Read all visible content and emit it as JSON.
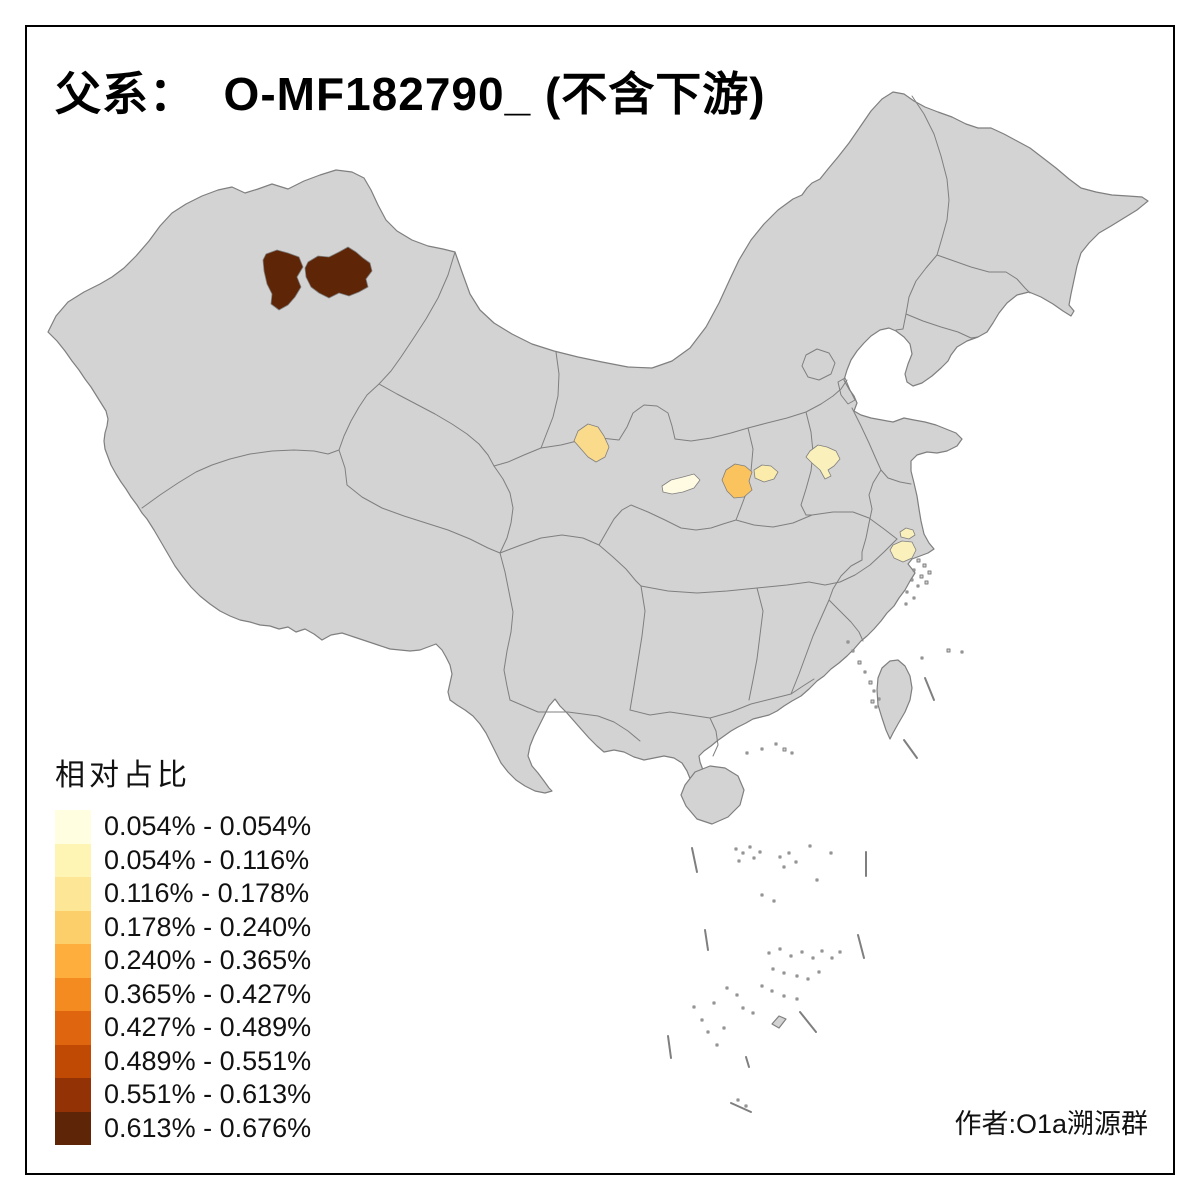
{
  "title": "父系：  O-MF182790_ (不含下游)",
  "attribution": "作者:O1a溯源群",
  "legend": {
    "title": "相对占比",
    "classes": [
      {
        "label": "0.054% - 0.054%",
        "color": "#FFFEE0"
      },
      {
        "label": "0.054% - 0.116%",
        "color": "#FEF4B4"
      },
      {
        "label": "0.116% - 0.178%",
        "color": "#FDE696"
      },
      {
        "label": "0.178% - 0.240%",
        "color": "#FDCF6B"
      },
      {
        "label": "0.240% - 0.365%",
        "color": "#FDAE3D"
      },
      {
        "label": "0.365% - 0.427%",
        "color": "#F38B21"
      },
      {
        "label": "0.427% - 0.489%",
        "color": "#DF650E"
      },
      {
        "label": "0.489% - 0.551%",
        "color": "#C04A04"
      },
      {
        "label": "0.551% - 0.613%",
        "color": "#933204"
      },
      {
        "label": "0.613% - 0.676%",
        "color": "#5F2507"
      }
    ]
  },
  "map": {
    "background": "#FFFFFF",
    "land_fill": "#D3D3D3",
    "border_color": "#7F7F7F",
    "frame_color": "#000000",
    "regions": [
      {
        "id": "xinjiang-northwest",
        "color": "#5E2507",
        "legend_class": "0.613% - 0.676%"
      },
      {
        "id": "xinjiang-north",
        "color": "#5E2507",
        "legend_class": "0.613% - 0.676%"
      },
      {
        "id": "gansu-central",
        "color": "#FADB8C",
        "legend_class": "0.116% - 0.178%"
      },
      {
        "id": "shaanxi-south",
        "color": "#FFFBE2",
        "legend_class": "0.054% - 0.054%"
      },
      {
        "id": "shanxi-southwest",
        "color": "#FBC35E",
        "legend_class": "0.178% - 0.240%"
      },
      {
        "id": "shanxi-south",
        "color": "#FCECAC",
        "legend_class": "0.054% - 0.116%"
      },
      {
        "id": "henan-north",
        "color": "#FAF0BC",
        "legend_class": "0.054% - 0.116%"
      },
      {
        "id": "jiangsu-southeast-upper",
        "color": "#FAF0BC",
        "legend_class": "0.054% - 0.116%"
      },
      {
        "id": "jiangsu-southeast-lower",
        "color": "#FAF0BC",
        "legend_class": "0.054% - 0.116%"
      }
    ]
  },
  "chart_data": {
    "type": "choropleth",
    "title": "父系：  O-MF182790_ (不含下游)",
    "legend_title": "相对占比",
    "breaks_percent": [
      0.054,
      0.054,
      0.116,
      0.178,
      0.24,
      0.365,
      0.427,
      0.489,
      0.551,
      0.613,
      0.676
    ],
    "colored_region_count": 9,
    "legend_position": "bottom-left"
  }
}
